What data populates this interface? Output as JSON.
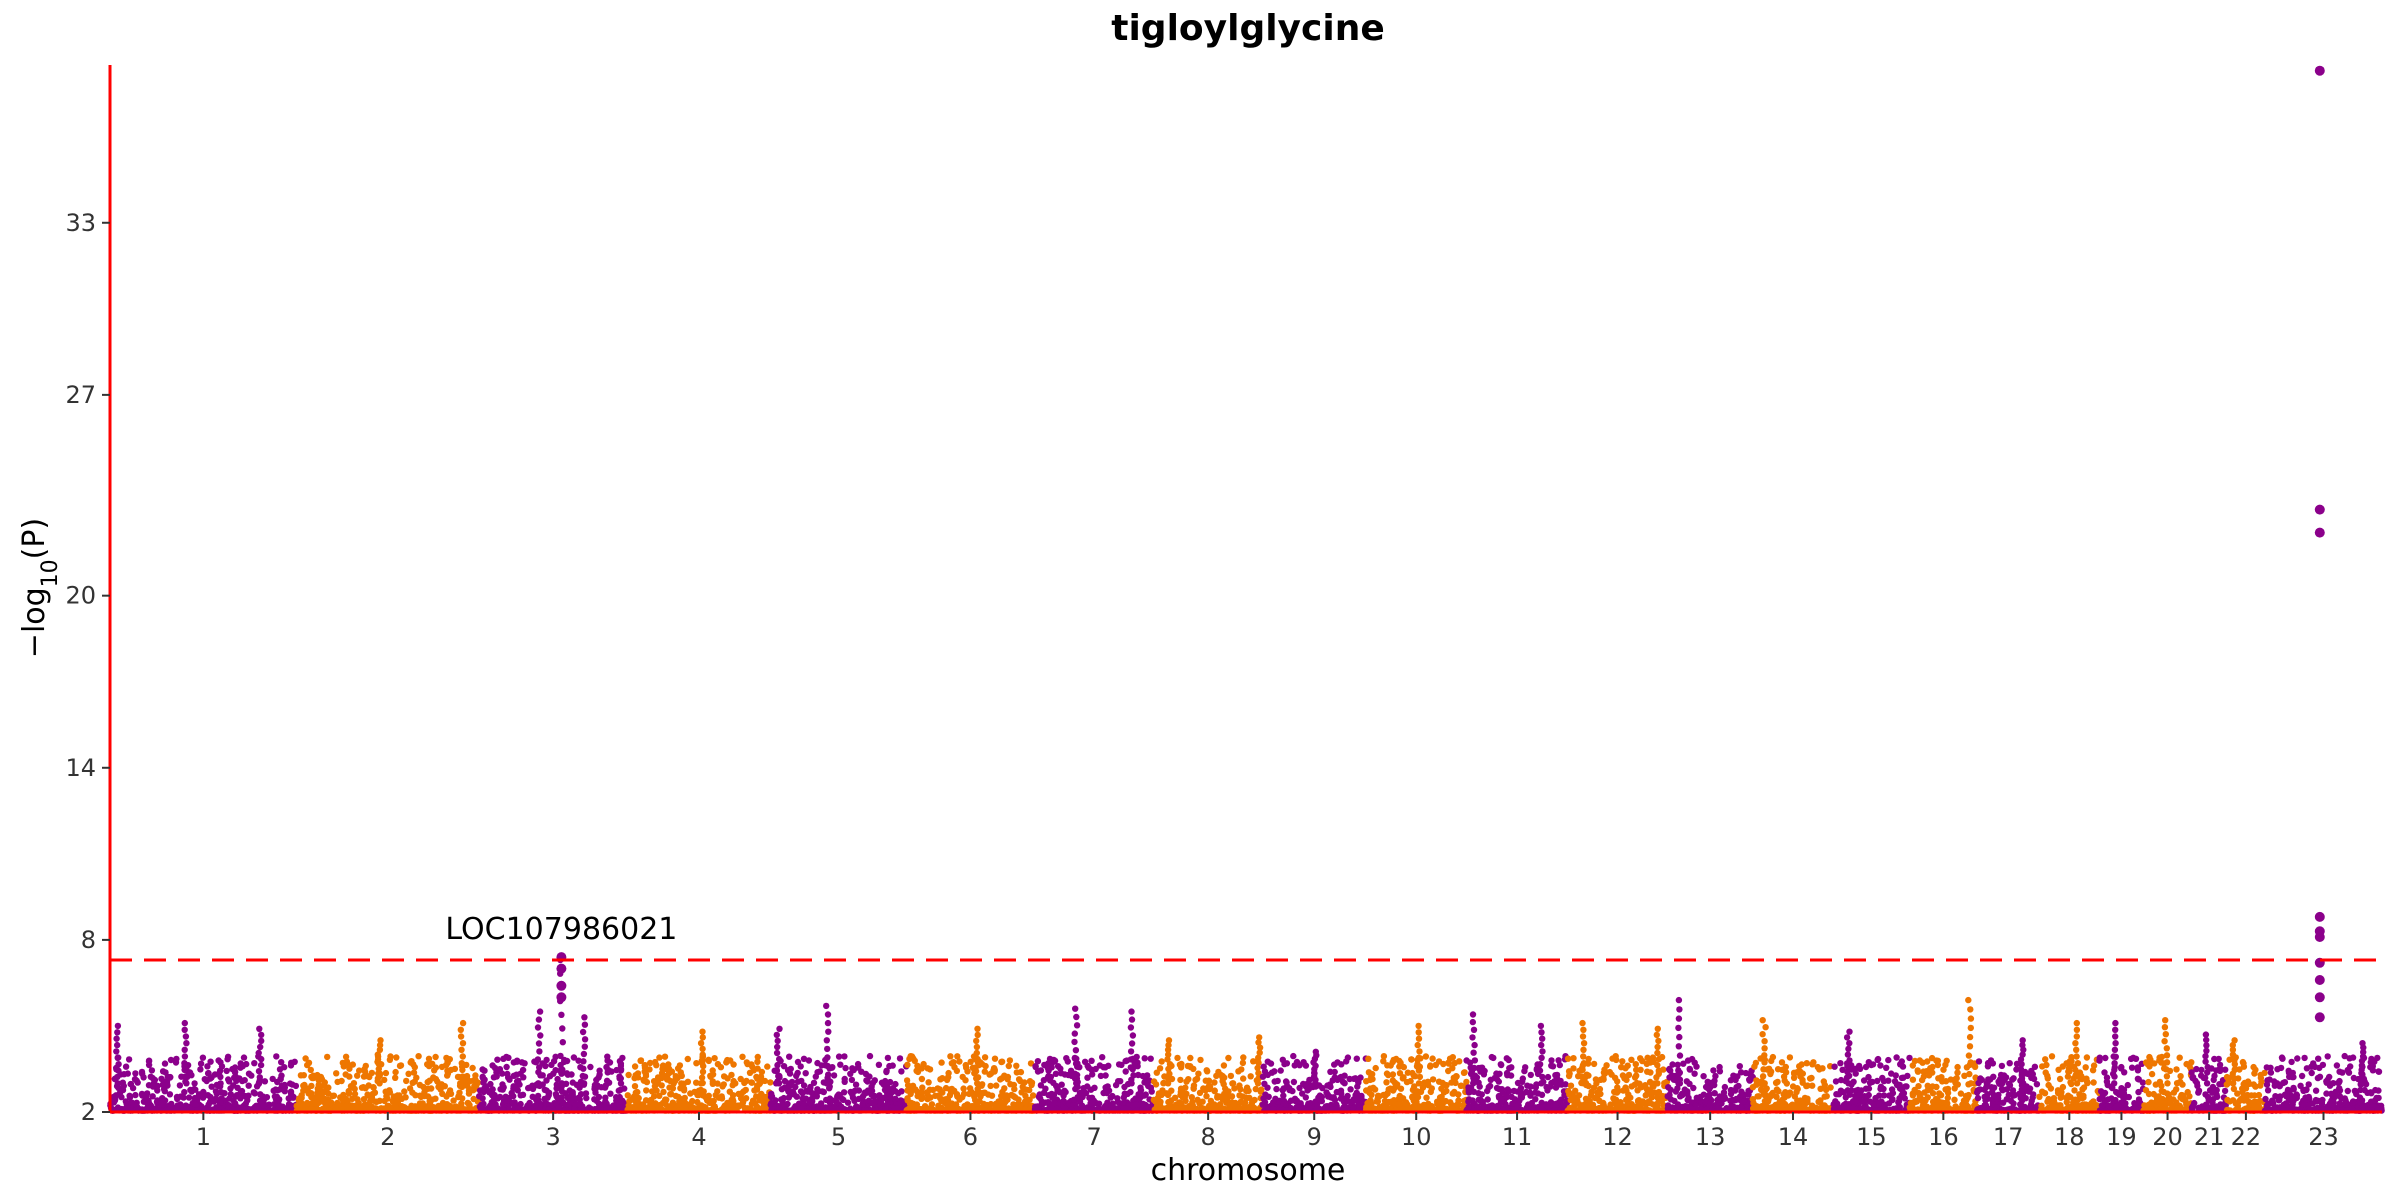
{
  "chart_data": {
    "type": "scatter",
    "subtype": "manhattan",
    "title": "tigloylglycine",
    "xlabel": "chromosome",
    "ylabel": "−log10(P)",
    "ylim": [
      2,
      38.5
    ],
    "yticks": [
      2,
      8,
      14,
      20,
      27,
      33
    ],
    "grid": false,
    "legend": "none",
    "colors": {
      "odd": "#8B008B",
      "even": "#EE7600",
      "axis": "#FF0000",
      "threshold": "#FF0000"
    },
    "threshold": 7.3,
    "chromosomes": [
      {
        "label": "1",
        "start": 0,
        "length": 249,
        "peaks": [
          [
            10,
            5.0
          ],
          [
            100,
            5.1
          ],
          [
            200,
            4.9
          ]
        ]
      },
      {
        "label": "2",
        "start": 249,
        "length": 243,
        "peaks": [
          [
            110,
            4.5
          ],
          [
            220,
            5.1
          ]
        ]
      },
      {
        "label": "3",
        "start": 492,
        "length": 198,
        "peaks": [
          [
            80,
            5.5
          ],
          [
            110,
            7.3
          ],
          [
            140,
            5.3
          ]
        ]
      },
      {
        "label": "4",
        "start": 690,
        "length": 191,
        "peaks": [
          [
            100,
            4.8
          ]
        ]
      },
      {
        "label": "5",
        "start": 881,
        "length": 181,
        "peaks": [
          [
            75,
            5.7
          ],
          [
            10,
            4.9
          ]
        ]
      },
      {
        "label": "6",
        "start": 1062,
        "length": 171,
        "peaks": [
          [
            95,
            4.9
          ]
        ]
      },
      {
        "label": "7",
        "start": 1233,
        "length": 159,
        "peaks": [
          [
            55,
            5.6
          ],
          [
            130,
            5.5
          ]
        ]
      },
      {
        "label": "8",
        "start": 1392,
        "length": 145,
        "peaks": [
          [
            20,
            4.5
          ],
          [
            140,
            4.6
          ]
        ]
      },
      {
        "label": "9",
        "start": 1537,
        "length": 138,
        "peaks": [
          [
            70,
            4.1
          ]
        ]
      },
      {
        "label": "10",
        "start": 1675,
        "length": 134,
        "peaks": [
          [
            70,
            5.0
          ]
        ]
      },
      {
        "label": "11",
        "start": 1809,
        "length": 135,
        "peaks": [
          [
            10,
            5.4
          ],
          [
            100,
            5.0
          ]
        ]
      },
      {
        "label": "12",
        "start": 1944,
        "length": 133,
        "peaks": [
          [
            20,
            5.1
          ],
          [
            120,
            4.9
          ]
        ]
      },
      {
        "label": "13",
        "start": 2077,
        "length": 114,
        "peaks": [
          [
            15,
            5.9
          ]
        ]
      },
      {
        "label": "14",
        "start": 2191,
        "length": 107,
        "peaks": [
          [
            15,
            5.2
          ]
        ]
      },
      {
        "label": "15",
        "start": 2298,
        "length": 102,
        "peaks": [
          [
            20,
            4.8
          ]
        ]
      },
      {
        "label": "16",
        "start": 2400,
        "length": 90,
        "peaks": [
          [
            80,
            5.9
          ]
        ]
      },
      {
        "label": "17",
        "start": 2490,
        "length": 83,
        "peaks": [
          [
            60,
            4.5
          ]
        ]
      },
      {
        "label": "18",
        "start": 2573,
        "length": 80,
        "peaks": [
          [
            50,
            5.1
          ]
        ]
      },
      {
        "label": "19",
        "start": 2653,
        "length": 59,
        "peaks": [
          [
            20,
            5.1
          ]
        ]
      },
      {
        "label": "20",
        "start": 2712,
        "length": 64,
        "peaks": [
          [
            30,
            5.2
          ]
        ]
      },
      {
        "label": "21",
        "start": 2776,
        "length": 47,
        "peaks": [
          [
            20,
            4.7
          ]
        ]
      },
      {
        "label": "22",
        "start": 2823,
        "length": 51,
        "peaks": [
          [
            10,
            4.5
          ]
        ]
      },
      {
        "label": "23",
        "start": 2874,
        "length": 156,
        "peaks": [
          [
            130,
            4.4
          ]
        ]
      }
    ],
    "highlight_points": [
      {
        "x": 2947,
        "y": 38.3
      },
      {
        "x": 2947,
        "y": 23.0
      },
      {
        "x": 2947,
        "y": 22.2
      },
      {
        "x": 2947,
        "y": 8.8
      },
      {
        "x": 2947,
        "y": 8.3
      },
      {
        "x": 2947,
        "y": 8.1
      },
      {
        "x": 2947,
        "y": 7.2
      },
      {
        "x": 2947,
        "y": 6.6
      },
      {
        "x": 2947,
        "y": 6.0
      },
      {
        "x": 2947,
        "y": 5.3
      },
      {
        "x": 602,
        "y": 7.4
      },
      {
        "x": 602,
        "y": 7.0
      },
      {
        "x": 602,
        "y": 6.4
      },
      {
        "x": 602,
        "y": 6.0
      }
    ],
    "annotations": [
      {
        "text": "LOC107986021",
        "x": 602,
        "y": 7.4
      }
    ]
  }
}
